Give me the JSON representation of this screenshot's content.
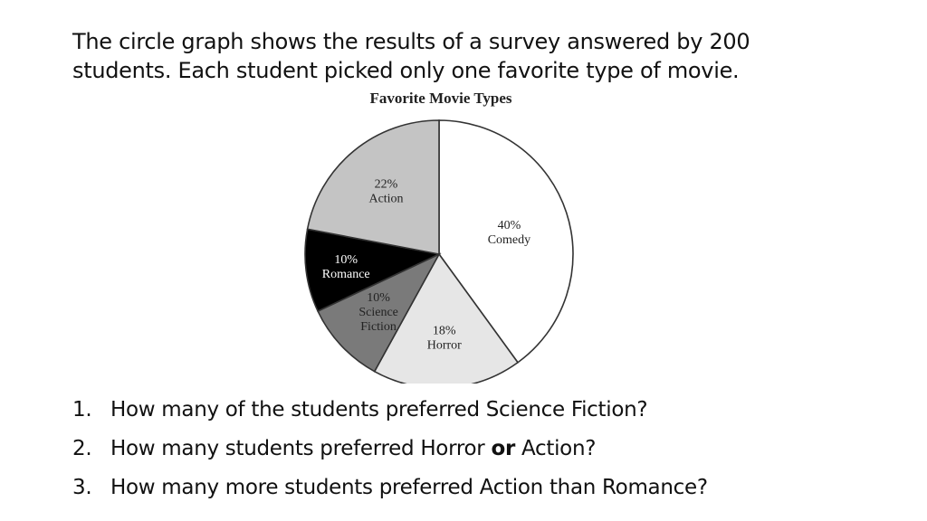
{
  "intro": {
    "line1": "The circle graph shows the results of a survey answered by 200",
    "line2": "students. Each student picked only one favorite type of movie."
  },
  "chart_data": {
    "type": "pie",
    "title": "Favorite Movie Types",
    "slices": [
      {
        "pct": "40%",
        "label": "Comedy",
        "value": 40,
        "color": "#ffffff",
        "lines": [
          "40%",
          "Comedy"
        ]
      },
      {
        "pct": "18%",
        "label": "Horror",
        "value": 18,
        "color": "#e6e6e6",
        "lines": [
          "18%",
          "Horror"
        ]
      },
      {
        "pct": "10%",
        "label": "Science Fiction",
        "value": 10,
        "color": "#7a7a7a",
        "lines": [
          "10%",
          "Science",
          "Fiction"
        ]
      },
      {
        "pct": "10%",
        "label": "Romance",
        "value": 10,
        "color": "#000000",
        "lines": [
          "10%",
          "Romance"
        ]
      },
      {
        "pct": "22%",
        "label": "Action",
        "value": 22,
        "color": "#c4c4c4",
        "lines": [
          "22%",
          "Action"
        ]
      }
    ]
  },
  "questions": [
    {
      "num": "1.",
      "pre": "How many of the students preferred Science Fiction?",
      "bold": "",
      "post": ""
    },
    {
      "num": "2.",
      "pre": "How many students preferred Horror ",
      "bold": "or",
      "post": " Action?"
    },
    {
      "num": "3.",
      "pre": "How many more students preferred Action than Romance?",
      "bold": "",
      "post": ""
    }
  ]
}
